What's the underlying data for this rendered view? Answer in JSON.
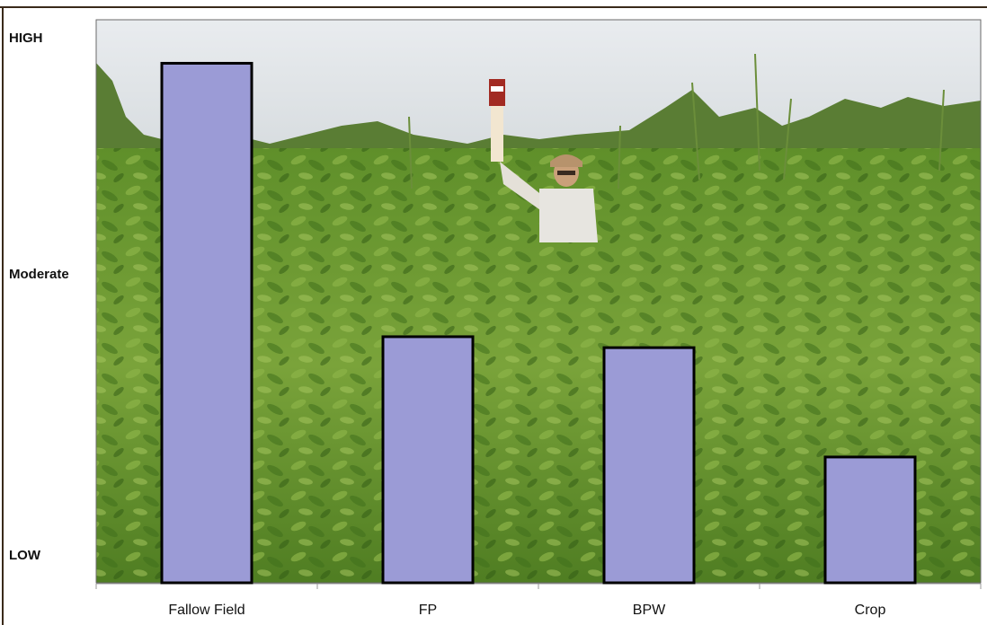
{
  "chart_data": {
    "type": "bar",
    "categories": [
      "Fallow Field",
      "FP",
      "BPW",
      "Crop"
    ],
    "values": [
      95,
      45,
      43,
      23
    ],
    "ylim": [
      0,
      100
    ],
    "y_tick_labels": [
      {
        "value": 0,
        "label": "LOW"
      },
      {
        "value": 50,
        "label": "Moderate"
      },
      {
        "value": 100,
        "label": "HIGH"
      }
    ],
    "title": "",
    "xlabel": "",
    "ylabel": "",
    "grid": false,
    "legend": "none",
    "background": "photo of a field of dense weeds with a person holding up a measuring pole",
    "colors": {
      "bar_fill": "#9b9bd6",
      "bar_stroke": "#000000",
      "frame": "#3a2a1a"
    }
  }
}
